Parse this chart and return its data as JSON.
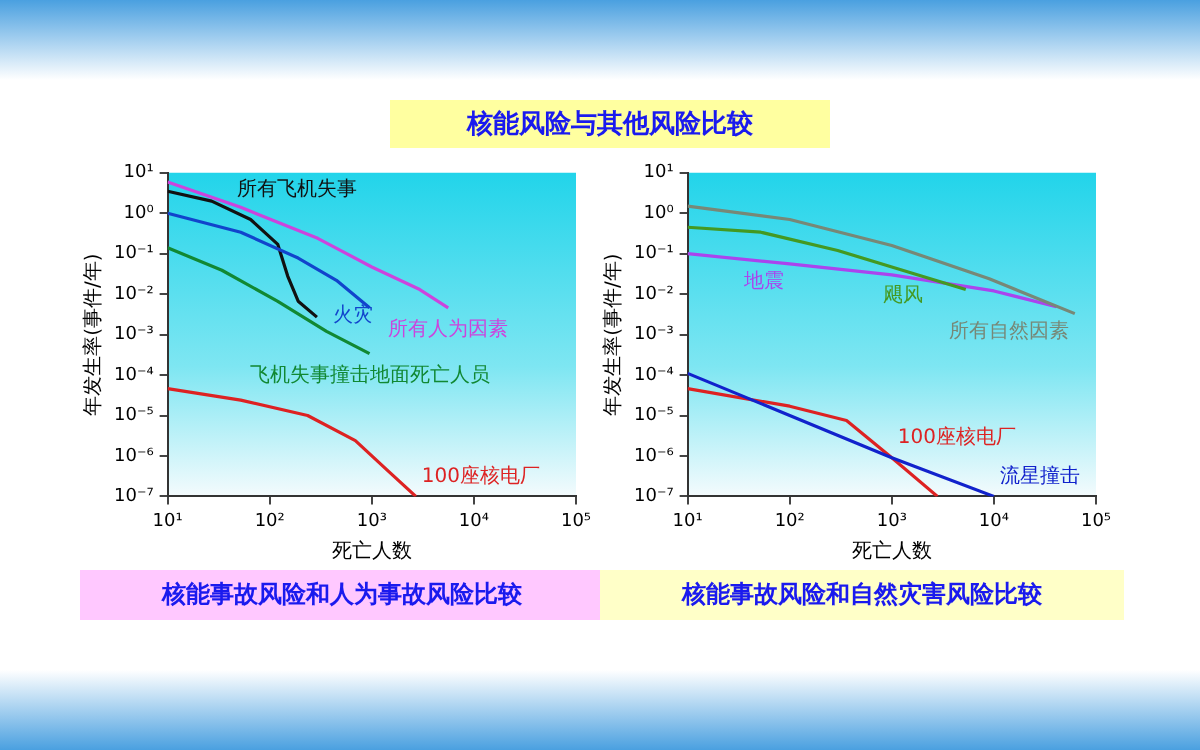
{
  "chart_data": [
    {
      "type": "line",
      "title": "核能事故风险和人为事故风险比较",
      "annotations": [
        "核能风险与其他风险比较"
      ],
      "xlabel": "死亡人数",
      "ylabel": "年发生率(事件/年)",
      "log": "xy",
      "grid": false,
      "legend": false,
      "marker": "none",
      "line_style": "solid",
      "xlim": [
        10,
        100000
      ],
      "xticks": [
        {
          "value": 10,
          "label": "10¹"
        },
        {
          "value": 100,
          "label": "10²"
        },
        {
          "value": 1000,
          "label": "10³"
        },
        {
          "value": 10000,
          "label": "10⁴"
        },
        {
          "value": 100000,
          "label": "10⁵"
        }
      ],
      "ylim": [
        1e-07,
        10
      ],
      "yticks": [
        {
          "value": 1e-07,
          "label": "10⁻⁷"
        },
        {
          "value": 1e-06,
          "label": "10⁻⁶"
        },
        {
          "value": 1e-05,
          "label": "10⁻⁵"
        },
        {
          "value": 0.0001,
          "label": "10⁻⁴"
        },
        {
          "value": 0.001,
          "label": "10⁻³"
        },
        {
          "value": 0.01,
          "label": "10⁻²"
        },
        {
          "value": 0.1,
          "label": "10⁻¹"
        },
        {
          "value": 1,
          "label": "10⁰"
        },
        {
          "value": 10,
          "label": "10¹"
        }
      ],
      "series": [
        {
          "name": "所有人为因素",
          "color": "#cc44dd",
          "x": [
            10,
            52,
            295,
            1000,
            2950,
            5600
          ],
          "values": [
            5.9,
            1.4,
            0.24,
            0.047,
            0.013,
            0.0046
          ]
        },
        {
          "name": "火灾",
          "color": "#1144cc",
          "x": [
            10,
            52,
            190,
            450,
            950
          ],
          "values": [
            1,
            0.34,
            0.078,
            0.022,
            0.0046
          ]
        },
        {
          "name": "所有飞机失事",
          "color": "#111111",
          "x": [
            10,
            27,
            65,
            120,
            150,
            190,
            290
          ],
          "values": [
            3.5,
            2,
            0.7,
            0.17,
            0.028,
            0.0067,
            0.0027
          ]
        },
        {
          "name": "飞机失事撞击地面死亡人员",
          "color": "#118833",
          "x": [
            10,
            34,
            120,
            360,
            950
          ],
          "values": [
            0.14,
            0.039,
            0.0066,
            0.0012,
            0.00034
          ]
        },
        {
          "name": "100座核电厂",
          "color": "#dd2222",
          "x": [
            10,
            52,
            235,
            690,
            1450,
            2700
          ],
          "values": [
            4.6e-05,
            2.4e-05,
            1e-05,
            2.4e-06,
            4.2e-07,
            1e-07
          ]
        }
      ]
    },
    {
      "type": "line",
      "title": "核能事故风险和自然灾害风险比较",
      "xlabel": "死亡人数",
      "ylabel": "年发生率(事件/年)",
      "log": "xy",
      "grid": false,
      "legend": false,
      "marker": "none",
      "line_style": "solid",
      "xlim": [
        10,
        100000
      ],
      "xticks": [
        {
          "value": 10,
          "label": "10¹"
        },
        {
          "value": 100,
          "label": "10²"
        },
        {
          "value": 1000,
          "label": "10³"
        },
        {
          "value": 10000,
          "label": "10⁴"
        },
        {
          "value": 100000,
          "label": "10⁵"
        }
      ],
      "ylim": [
        1e-07,
        10
      ],
      "yticks": [
        {
          "value": 1e-07,
          "label": "10⁻⁷"
        },
        {
          "value": 1e-06,
          "label": "10⁻⁶"
        },
        {
          "value": 1e-05,
          "label": "10⁻⁵"
        },
        {
          "value": 0.0001,
          "label": "10⁻⁴"
        },
        {
          "value": 0.001,
          "label": "10⁻³"
        },
        {
          "value": 0.01,
          "label": "10⁻²"
        },
        {
          "value": 0.1,
          "label": "10⁻¹"
        },
        {
          "value": 1,
          "label": "10⁰"
        },
        {
          "value": 10,
          "label": "10¹"
        }
      ],
      "series": [
        {
          "name": "所有自然因素",
          "color": "#778877",
          "x": [
            10,
            100,
            1000,
            9000,
            62000
          ],
          "values": [
            1.5,
            0.7,
            0.16,
            0.024,
            0.0033
          ]
        },
        {
          "name": "飓风",
          "color": "#449922",
          "x": [
            10,
            52,
            295,
            1000,
            5300
          ],
          "values": [
            0.45,
            0.34,
            0.12,
            0.047,
            0.013
          ]
        },
        {
          "name": "地震",
          "color": "#aa44ee",
          "x": [
            10,
            100,
            1000,
            10000,
            41000
          ],
          "values": [
            0.1,
            0.056,
            0.03,
            0.012,
            0.0049
          ]
        },
        {
          "name": "流星撞击",
          "color": "#1122cc",
          "x": [
            10,
            100,
            1000,
            10000
          ],
          "values": [
            0.00011,
            1e-05,
            9e-07,
            1e-07
          ]
        },
        {
          "name": "100座核电厂",
          "color": "#dd2222",
          "x": [
            10,
            100,
            360,
            1000,
            2800
          ],
          "values": [
            4.6e-05,
            1.7e-05,
            7.5e-06,
            9e-07,
            1e-07
          ]
        }
      ]
    }
  ]
}
